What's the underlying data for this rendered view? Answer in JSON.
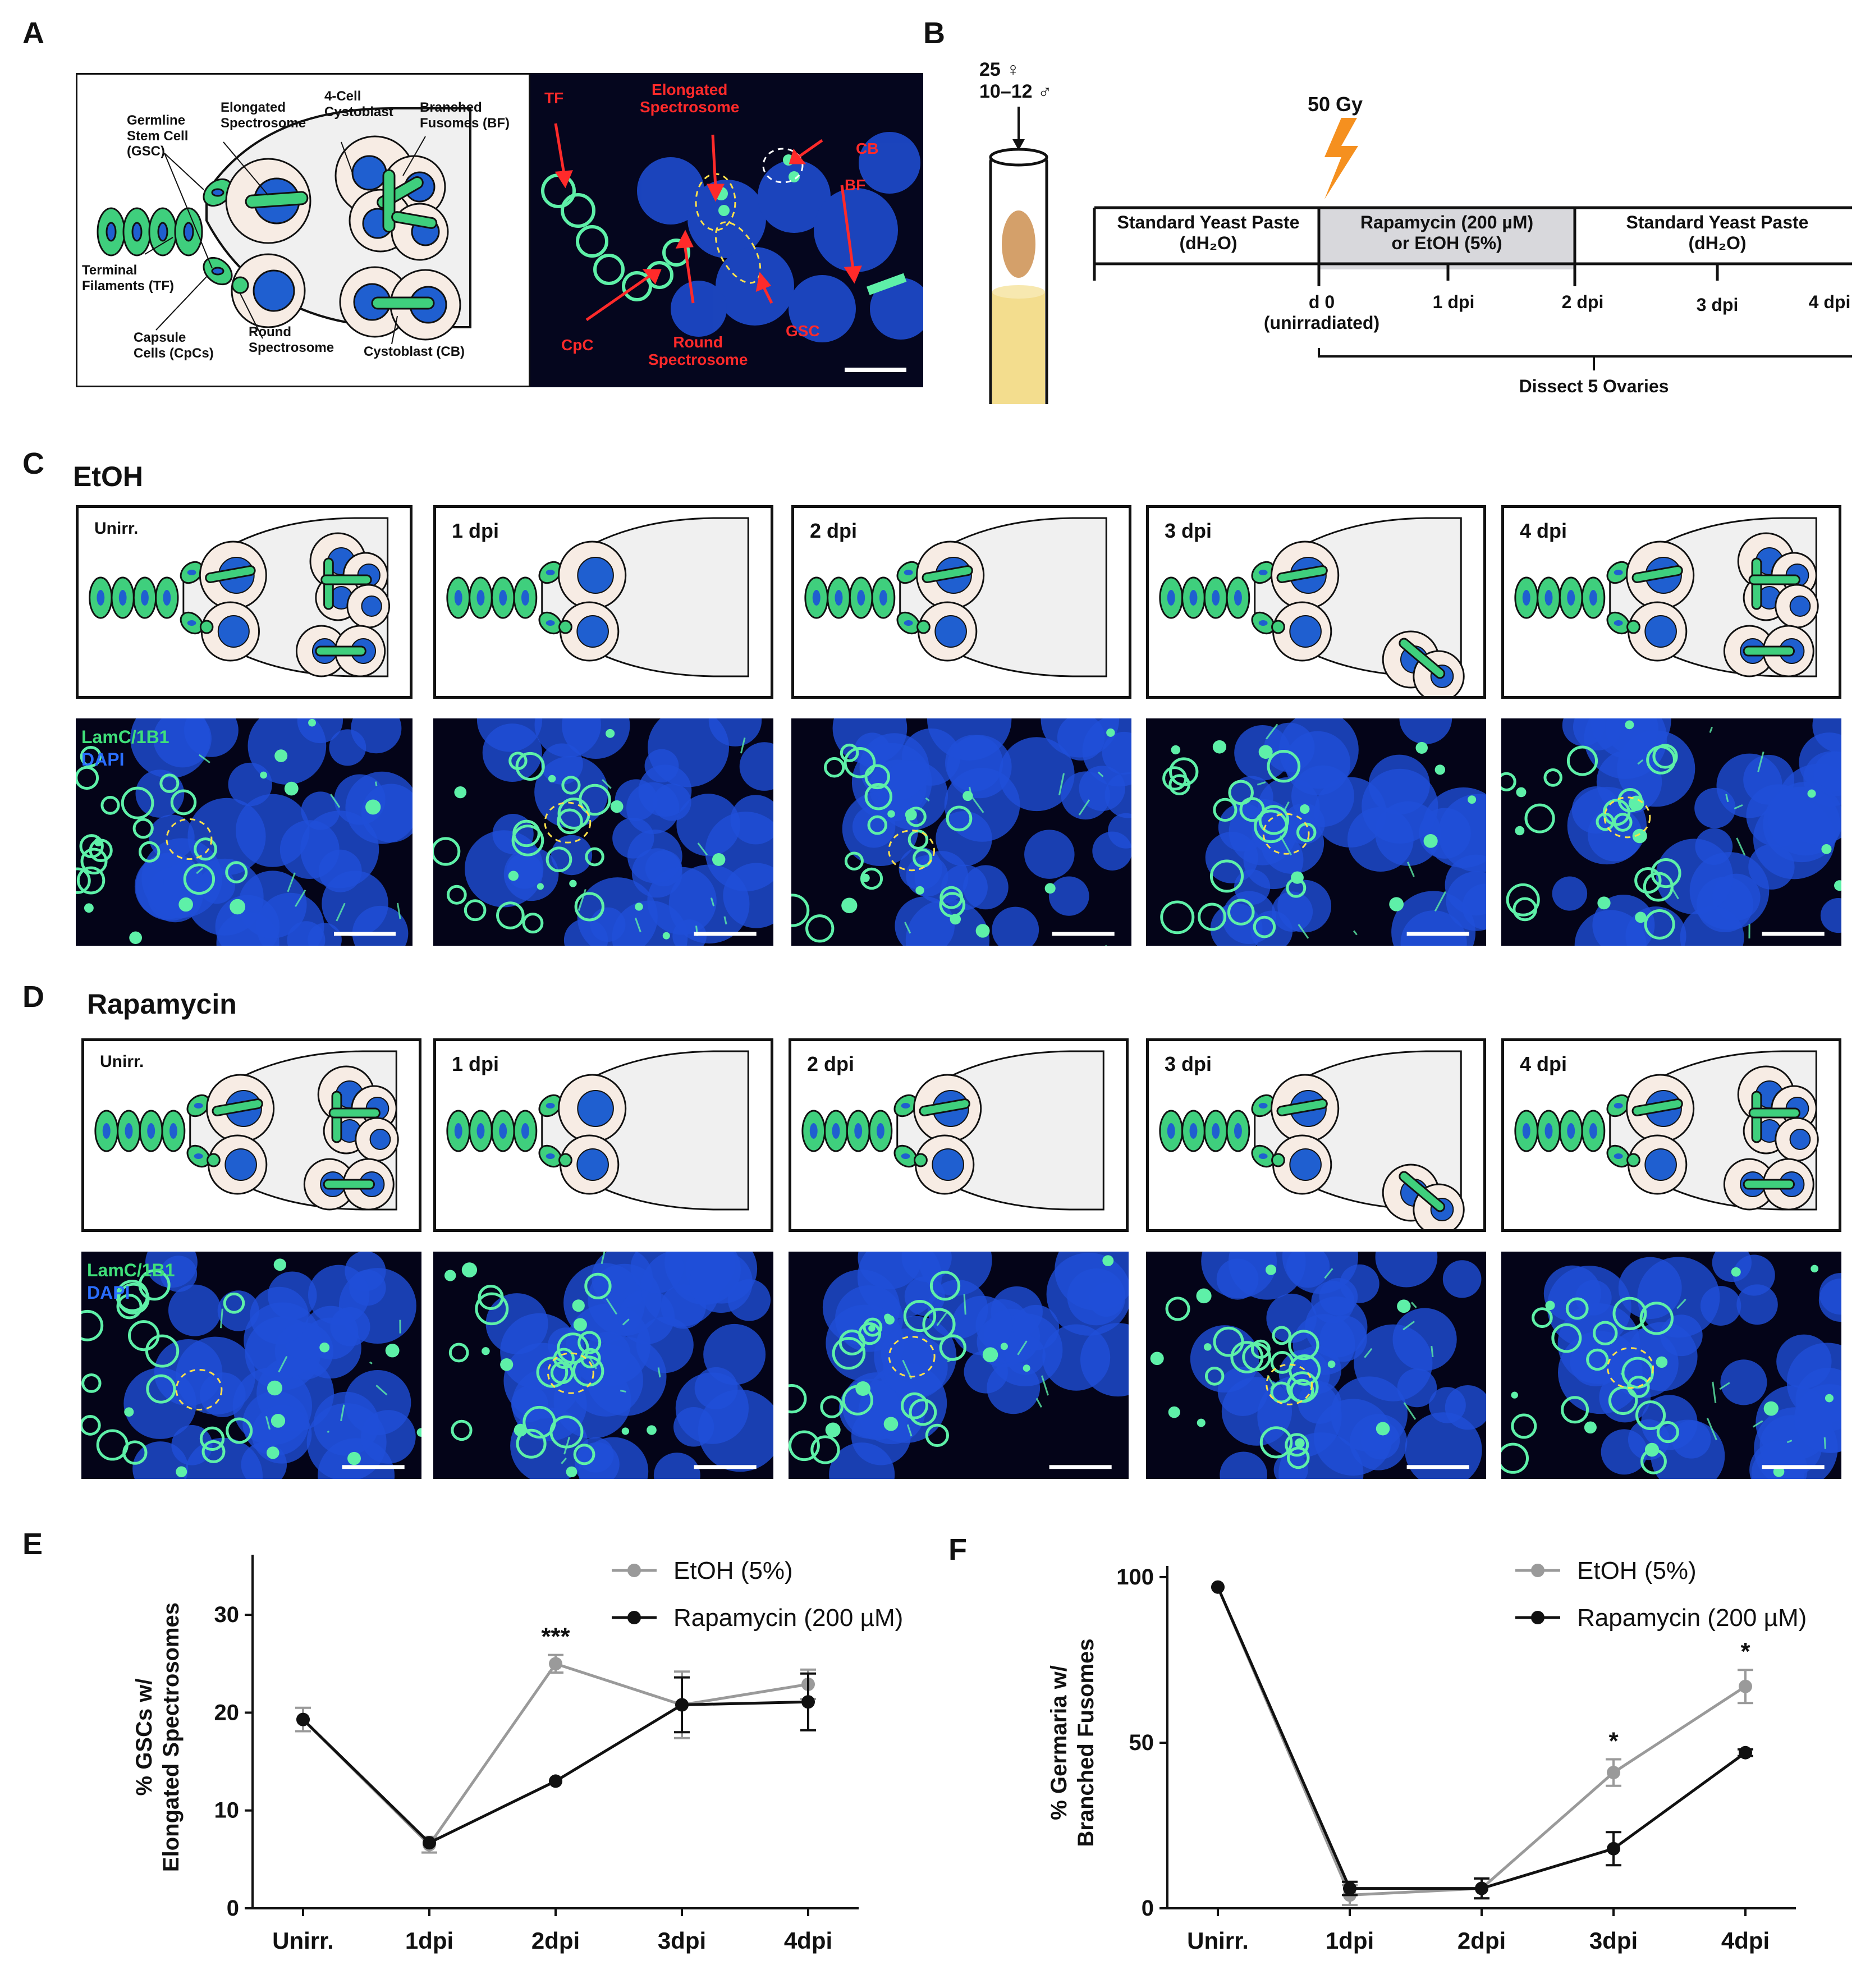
{
  "panels": {
    "A": "A",
    "B": "B",
    "C": "C",
    "D": "D",
    "E": "E",
    "F": "F"
  },
  "schematicA": {
    "gsc": "Germline\nStem Cell\n(GSC)",
    "elong": "Elongated\nSpectrosome",
    "fourcell": "4-Cell\nCystoblast",
    "bf": "Branched\nFusomes (BF)",
    "tf": "Terminal\nFilaments (TF)",
    "cpc": "Capsule\nCells (CpCs)",
    "round": "Round\nSpectrosome",
    "cb": "Cystoblast (CB)"
  },
  "microA": {
    "tf": "TF",
    "elong": "Elongated\nSpectrosome",
    "cb": "CB",
    "bf": "BF",
    "cpc": "CpC",
    "round": "Round\nSpectrosome",
    "gsc": "GSC"
  },
  "timeline": {
    "flies": "25 ♀\n10–12 ♂",
    "dose": "50 Gy",
    "seg1": "Standard Yeast Paste\n(dH₂O)",
    "seg2": "Rapamycin (200 µM)\nor EtOH (5%)",
    "seg3": "Standard Yeast Paste\n(dH₂O)",
    "ticks": [
      "d 0\n(unirradiated)",
      "1 dpi",
      "2 dpi",
      "3 dpi",
      "4 dpi"
    ],
    "dissect": "Dissect 5 Ovaries"
  },
  "rowC": {
    "title": "EtOH",
    "labels": [
      "Unirr.",
      "1 dpi",
      "2 dpi",
      "3 dpi",
      "4 dpi"
    ],
    "stain1": "LamC/1B1",
    "stain2": "DAPI"
  },
  "rowD": {
    "title": "Rapamycin",
    "labels": [
      "Unirr.",
      "1 dpi",
      "2  dpi",
      "3 dpi",
      "4 dpi"
    ],
    "stain1": "LamC/1B1",
    "stain2": "DAPI"
  },
  "colors": {
    "green": "#3fcf7d",
    "blue": "#1f5fd0",
    "cream": "#f7ece4",
    "grey": "#9a9a9a",
    "black": "#111111",
    "red": "#ff2a2a"
  },
  "chart_data": [
    {
      "type": "line",
      "categories": [
        "Unirr.",
        "1dpi",
        "2dpi",
        "3dpi",
        "4dpi"
      ],
      "ylabel": "% GSCs w/\nElongated Spectrosomes",
      "ylim": [
        0,
        35
      ],
      "yticks": [
        0,
        10,
        20,
        30
      ],
      "legend": "top-right",
      "series": [
        {
          "name": "EtOH (5%)",
          "color": "#9a9a9a",
          "values": [
            19.3,
            6.5,
            25.0,
            20.8,
            22.9
          ],
          "err": [
            1.2,
            0.8,
            0.9,
            3.4,
            1.5
          ]
        },
        {
          "name": "Rapamycin (200 µM)",
          "color": "#111111",
          "values": [
            19.3,
            6.7,
            13.0,
            20.8,
            21.1
          ],
          "err": [
            0,
            0,
            0,
            2.8,
            2.9
          ]
        }
      ],
      "annotations": [
        {
          "category": "2dpi",
          "text": "***"
        }
      ]
    },
    {
      "type": "line",
      "categories": [
        "Unirr.",
        "1dpi",
        "2dpi",
        "3dpi",
        "4dpi"
      ],
      "ylabel": "% Germaria w/\nBranched Fusomes",
      "ylim": [
        0,
        100
      ],
      "yticks": [
        0,
        50,
        100
      ],
      "legend": "top-right",
      "series": [
        {
          "name": "EtOH (5%)",
          "color": "#9a9a9a",
          "values": [
            97,
            4,
            6,
            41,
            67
          ],
          "err": [
            0,
            3,
            3,
            4,
            5
          ]
        },
        {
          "name": "Rapamycin (200 µM)",
          "color": "#111111",
          "values": [
            97,
            6,
            6,
            18,
            47
          ],
          "err": [
            0,
            2,
            3,
            5,
            1
          ]
        }
      ],
      "annotations": [
        {
          "category": "3dpi",
          "text": "*"
        },
        {
          "category": "4dpi",
          "text": "*"
        }
      ]
    }
  ]
}
